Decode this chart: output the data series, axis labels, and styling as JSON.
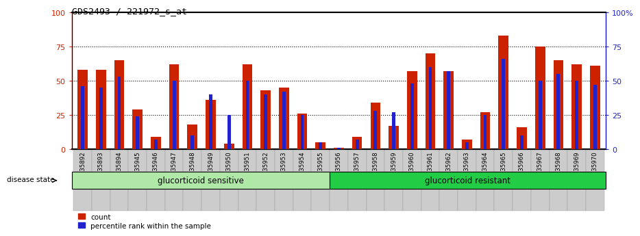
{
  "title": "GDS2493 / 221972_s_at",
  "samples": [
    "GSM135892",
    "GSM135893",
    "GSM135894",
    "GSM135945",
    "GSM135946",
    "GSM135947",
    "GSM135948",
    "GSM135949",
    "GSM135950",
    "GSM135951",
    "GSM135952",
    "GSM135953",
    "GSM135954",
    "GSM135955",
    "GSM135956",
    "GSM135957",
    "GSM135958",
    "GSM135959",
    "GSM135960",
    "GSM135961",
    "GSM135962",
    "GSM135963",
    "GSM135964",
    "GSM135965",
    "GSM135966",
    "GSM135967",
    "GSM135968",
    "GSM135969",
    "GSM135970"
  ],
  "count_values": [
    58,
    58,
    65,
    29,
    9,
    62,
    18,
    36,
    4,
    62,
    43,
    45,
    26,
    5,
    1,
    9,
    34,
    17,
    57,
    70,
    57,
    7,
    27,
    83,
    16,
    75,
    65,
    62,
    61
  ],
  "percentile_values": [
    46,
    45,
    53,
    24,
    7,
    50,
    10,
    40,
    25,
    50,
    40,
    42,
    25,
    5,
    1,
    7,
    28,
    27,
    48,
    60,
    57,
    5,
    25,
    66,
    10,
    50,
    55,
    50,
    47
  ],
  "sensitive_count": 14,
  "group1_label": "glucorticoid sensitive",
  "group2_label": "glucorticoid resistant",
  "disease_state_label": "disease state",
  "bar_color_red": "#CC2200",
  "bar_color_blue": "#2222CC",
  "bg_plot": "#ffffff",
  "bg_group1": "#aaddaa",
  "bg_group2": "#22cc44",
  "ylim": [
    0,
    100
  ],
  "yticks_left": [
    0,
    25,
    50,
    75,
    100
  ],
  "yticks_right_labels": [
    "0",
    "25",
    "50",
    "75",
    "100%"
  ],
  "grid_lines": [
    25,
    50,
    75
  ],
  "red_bar_width": 0.55,
  "blue_bar_width": 0.18,
  "legend_count": "count",
  "legend_percentile": "percentile rank within the sample"
}
